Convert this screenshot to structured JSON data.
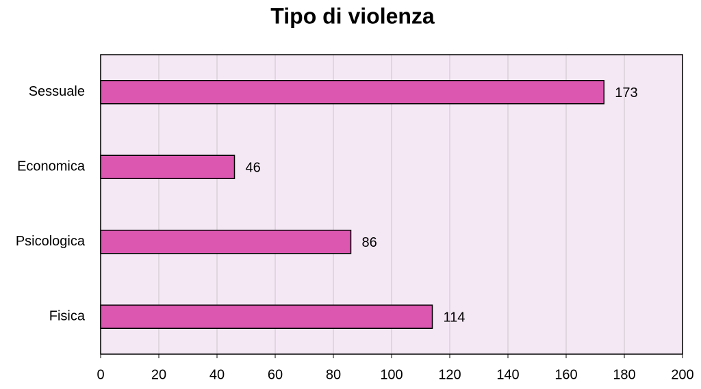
{
  "chart_data": {
    "type": "bar",
    "orientation": "horizontal",
    "title": "Tipo di violenza",
    "categories": [
      "Sessuale",
      "Economica",
      "Psicologica",
      "Fisica"
    ],
    "values": [
      173,
      46,
      86,
      114
    ],
    "color": "#db57b0",
    "background": "#f5e8f5",
    "xlim": [
      0,
      200
    ],
    "xticks": [
      0,
      20,
      40,
      60,
      80,
      100,
      120,
      140,
      160,
      180,
      200
    ],
    "grid": true
  }
}
